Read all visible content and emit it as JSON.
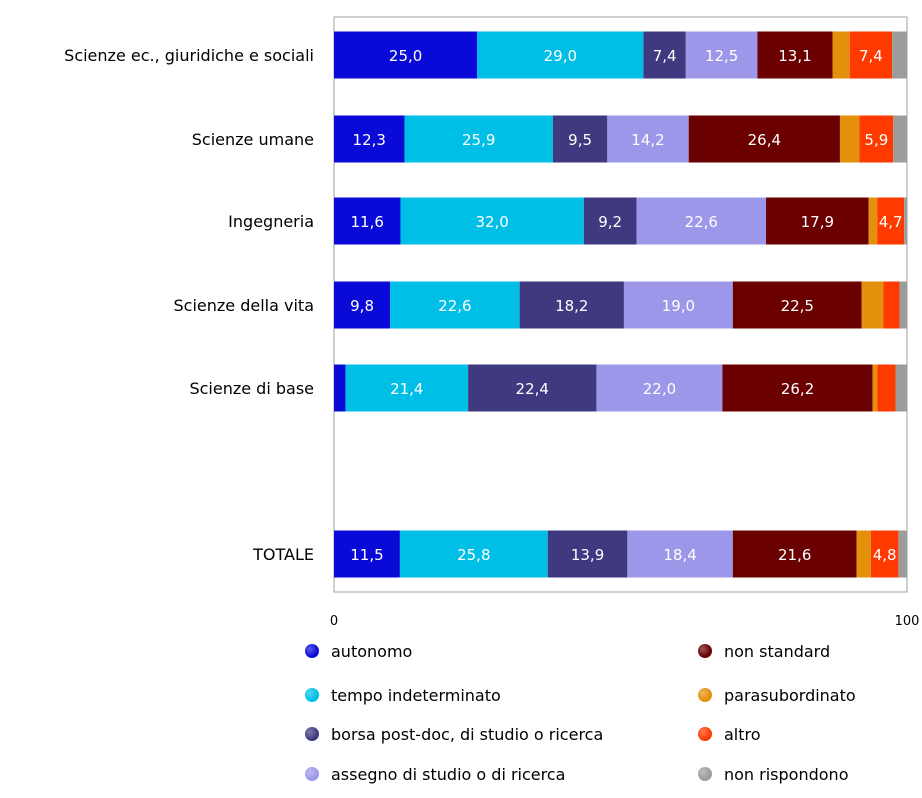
{
  "chart_data": {
    "type": "bar",
    "orientation": "horizontal",
    "stacked": true,
    "categories": [
      "Scienze ec., giuridiche e sociali",
      "Scienze umane",
      "Ingegneria",
      "Scienze della vita",
      "Scienze di base",
      "TOTALE"
    ],
    "series": [
      {
        "name": "autonomo",
        "color": "#0a0ad8",
        "values": [
          25.0,
          12.3,
          11.6,
          9.8,
          2.0,
          11.5
        ],
        "labels": [
          "25,0",
          "12,3",
          "11,6",
          "9,8",
          "",
          "11,5"
        ]
      },
      {
        "name": "tempo indeterminato",
        "color": "#00bfe6",
        "values": [
          29.0,
          25.9,
          32.0,
          22.6,
          21.4,
          25.8
        ],
        "labels": [
          "29,0",
          "25,9",
          "32,0",
          "22,6",
          "21,4",
          "25,8"
        ]
      },
      {
        "name": "borsa post-doc, di studio o ricerca",
        "color": "#3f3a80",
        "values": [
          7.4,
          9.5,
          9.2,
          18.2,
          22.4,
          13.9
        ],
        "labels": [
          "7,4",
          "9,5",
          "9,2",
          "18,2",
          "22,4",
          "13,9"
        ]
      },
      {
        "name": "assegno di studio o di ricerca",
        "color": "#9c97e8",
        "values": [
          12.5,
          14.2,
          22.6,
          19.0,
          22.0,
          18.4
        ],
        "labels": [
          "12,5",
          "14,2",
          "22,6",
          "19,0",
          "22,0",
          "18,4"
        ]
      },
      {
        "name": "non standard",
        "color": "#6a0000",
        "values": [
          13.1,
          26.4,
          17.9,
          22.5,
          26.2,
          21.6
        ],
        "labels": [
          "13,1",
          "26,4",
          "17,9",
          "22,5",
          "26,2",
          "21,6"
        ]
      },
      {
        "name": "parasubordinato",
        "color": "#e3900c",
        "values": [
          3.0,
          3.4,
          1.5,
          3.8,
          0.8,
          2.5
        ],
        "labels": [
          "",
          "",
          "",
          "",
          "",
          ""
        ]
      },
      {
        "name": "altro",
        "color": "#ff3a00",
        "values": [
          7.4,
          5.9,
          4.7,
          2.8,
          3.2,
          4.8
        ],
        "labels": [
          "7,4",
          "5,9",
          "4,7",
          "",
          "",
          "4,8"
        ]
      },
      {
        "name": "non rispondono",
        "color": "#9c9c9c",
        "values": [
          2.6,
          2.4,
          0.5,
          1.3,
          2.0,
          1.5
        ],
        "labels": [
          "",
          "",
          "",
          "",
          "",
          ""
        ]
      }
    ],
    "xlim": [
      0,
      100
    ],
    "x_ticks": [
      "0",
      "100"
    ],
    "title": "",
    "xlabel": "",
    "ylabel": "",
    "grid": false,
    "legend_position": "bottom"
  }
}
